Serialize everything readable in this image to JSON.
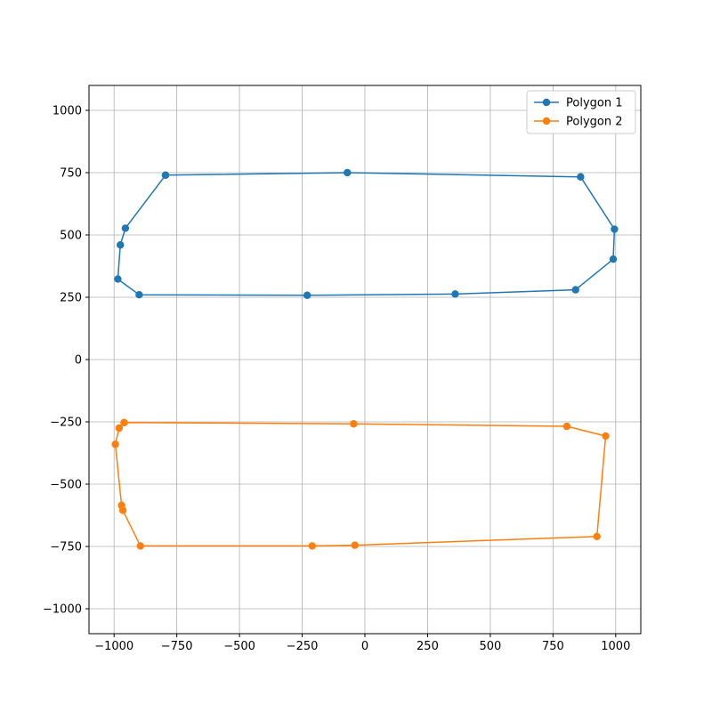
{
  "chart_data": {
    "type": "line",
    "title": "",
    "xlabel": "",
    "ylabel": "",
    "xlim": [
      -1100,
      1100
    ],
    "ylim": [
      -1100,
      1100
    ],
    "xticks": [
      -1000,
      -750,
      -500,
      -250,
      0,
      250,
      500,
      750,
      1000
    ],
    "yticks": [
      -1000,
      -750,
      -500,
      -250,
      0,
      250,
      500,
      750,
      1000
    ],
    "grid": true,
    "legend_position": "top-right",
    "series": [
      {
        "name": "Polygon 1",
        "color": "#1f77b4",
        "marker": "circle",
        "points": [
          [
            -795,
            740
          ],
          [
            -70,
            750
          ],
          [
            860,
            733
          ],
          [
            995,
            523
          ],
          [
            990,
            403
          ],
          [
            840,
            280
          ],
          [
            360,
            263
          ],
          [
            -230,
            258
          ],
          [
            -900,
            260
          ],
          [
            -985,
            323
          ],
          [
            -975,
            460
          ],
          [
            -955,
            527
          ],
          [
            -795,
            740
          ]
        ]
      },
      {
        "name": "Polygon 2",
        "color": "#ff7f0e",
        "marker": "circle",
        "points": [
          [
            -960,
            -253
          ],
          [
            -45,
            -258
          ],
          [
            805,
            -268
          ],
          [
            960,
            -307
          ],
          [
            925,
            -710
          ],
          [
            -40,
            -745
          ],
          [
            -210,
            -748
          ],
          [
            -895,
            -748
          ],
          [
            -965,
            -605
          ],
          [
            -970,
            -585
          ],
          [
            -995,
            -340
          ],
          [
            -980,
            -275
          ],
          [
            -960,
            -253
          ]
        ]
      }
    ]
  }
}
